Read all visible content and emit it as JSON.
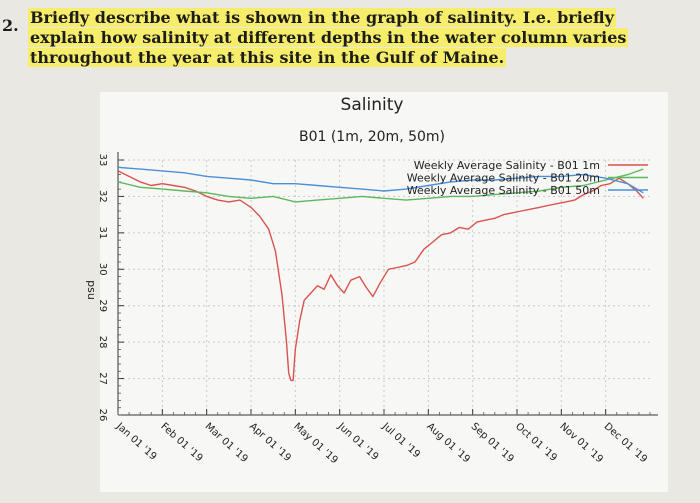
{
  "question": {
    "number": "2.",
    "text": "Briefly describe what is shown in the graph of salinity. I.e. briefly explain how salinity at different depths in the water column varies throughout the year at this site in the Gulf of Maine."
  },
  "chart_data": {
    "type": "line",
    "title": "Salinity",
    "subtitle": "B01 (1m, 20m, 50m)",
    "ylabel": "psu",
    "xlabel": "",
    "ylim": [
      26,
      33
    ],
    "yticks": [
      26,
      27,
      28,
      29,
      30,
      31,
      32,
      33
    ],
    "xlim": [
      0,
      12
    ],
    "xtick_labels": [
      "Jan 01 '19",
      "Feb 01 '19",
      "Mar 01 '19",
      "Apr 01 '19",
      "May 01 '19",
      "Jun 01 '19",
      "Jul 01 '19",
      "Aug 01 '19",
      "Sep 01 '19",
      "Oct 01 '19",
      "Nov 01 '19",
      "Dec 01 '19"
    ],
    "grid": true,
    "legend_position": "top-right",
    "series": [
      {
        "name": "Weekly Average Salinity - B01 1m",
        "color": "#d9534f",
        "x": [
          0,
          0.25,
          0.5,
          0.75,
          1,
          1.25,
          1.5,
          1.75,
          2,
          2.25,
          2.5,
          2.75,
          3,
          3.2,
          3.4,
          3.55,
          3.7,
          3.8,
          3.85,
          3.9,
          3.95,
          4,
          4.1,
          4.2,
          4.35,
          4.5,
          4.65,
          4.8,
          4.95,
          5.1,
          5.25,
          5.45,
          5.6,
          5.75,
          5.9,
          6.1,
          6.3,
          6.5,
          6.7,
          6.9,
          7.1,
          7.3,
          7.5,
          7.7,
          7.9,
          8.1,
          8.3,
          8.5,
          8.7,
          8.9,
          9.1,
          9.3,
          9.5,
          9.7,
          9.9,
          10.1,
          10.3,
          10.5,
          10.7,
          10.9,
          11.1,
          11.3,
          11.5,
          11.7,
          11.85
        ],
        "y": [
          32.7,
          32.55,
          32.4,
          32.3,
          32.35,
          32.3,
          32.25,
          32.15,
          32.0,
          31.9,
          31.85,
          31.9,
          31.7,
          31.45,
          31.1,
          30.5,
          29.3,
          28.0,
          27.15,
          26.95,
          26.95,
          27.8,
          28.6,
          29.15,
          29.35,
          29.55,
          29.45,
          29.85,
          29.55,
          29.35,
          29.7,
          29.8,
          29.5,
          29.25,
          29.6,
          30.0,
          30.05,
          30.1,
          30.2,
          30.55,
          30.75,
          30.95,
          31.0,
          31.15,
          31.1,
          31.3,
          31.35,
          31.4,
          31.5,
          31.55,
          31.6,
          31.65,
          31.7,
          31.75,
          31.8,
          31.85,
          31.9,
          32.05,
          32.15,
          32.3,
          32.35,
          32.5,
          32.35,
          32.15,
          31.95
        ]
      },
      {
        "name": "Weekly Average Salinity - B01 20m",
        "color": "#5cb85c",
        "x": [
          0,
          0.5,
          1,
          1.5,
          2,
          2.5,
          3,
          3.5,
          4,
          4.5,
          5,
          5.5,
          6,
          6.5,
          7,
          7.5,
          8,
          8.5,
          9,
          9.5,
          10,
          10.5,
          11,
          11.5,
          11.85
        ],
        "y": [
          32.4,
          32.25,
          32.2,
          32.15,
          32.1,
          32.0,
          31.95,
          32.0,
          31.85,
          31.9,
          31.95,
          32.0,
          31.95,
          31.9,
          31.95,
          32.0,
          32.0,
          32.05,
          32.1,
          32.15,
          32.25,
          32.3,
          32.45,
          32.6,
          32.75
        ]
      },
      {
        "name": "Weekly Average Salinity - B01 50m",
        "color": "#4a90d9",
        "x": [
          0,
          0.5,
          1,
          1.5,
          2,
          2.5,
          3,
          3.5,
          4,
          4.5,
          5,
          5.5,
          6,
          6.5,
          7,
          7.5,
          8,
          8.5,
          9,
          9.5,
          10,
          10.5,
          11,
          11.5,
          11.85
        ],
        "y": [
          32.8,
          32.75,
          32.7,
          32.65,
          32.55,
          32.5,
          32.45,
          32.35,
          32.35,
          32.3,
          32.25,
          32.2,
          32.15,
          32.2,
          32.3,
          32.4,
          32.45,
          32.45,
          32.5,
          32.55,
          32.55,
          32.6,
          32.5,
          32.35,
          32.1
        ]
      }
    ]
  }
}
